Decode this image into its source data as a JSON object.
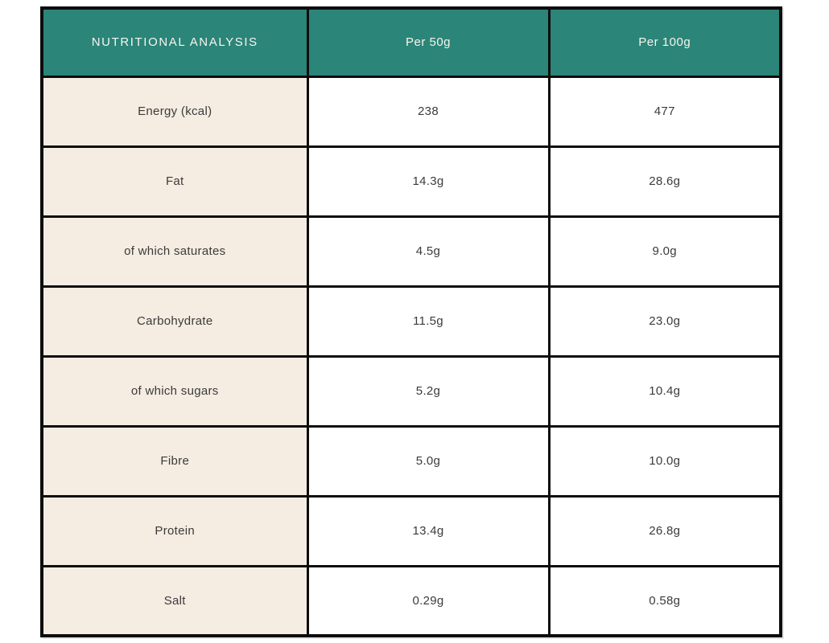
{
  "colors": {
    "header_bg": "#2B8579",
    "header_text": "#F8F5EE",
    "row_label_bg": "#F5ECE2",
    "cell_bg": "#FFFFFF",
    "border": "#0D0D0D",
    "body_text": "#3B3B3B"
  },
  "table": {
    "headers": [
      {
        "label": "NUTRITIONAL ANALYSIS"
      },
      {
        "label": "Per 50g"
      },
      {
        "label": "Per 100g"
      }
    ],
    "rows": [
      {
        "label": "Energy (kcal)",
        "per50": "238",
        "per100": "477"
      },
      {
        "label": "Fat",
        "per50": "14.3g",
        "per100": "28.6g"
      },
      {
        "label": "of which saturates",
        "per50": "4.5g",
        "per100": "9.0g"
      },
      {
        "label": "Carbohydrate",
        "per50": "11.5g",
        "per100": "23.0g"
      },
      {
        "label": "of which sugars",
        "per50": "5.2g",
        "per100": "10.4g"
      },
      {
        "label": "Fibre",
        "per50": "5.0g",
        "per100": "10.0g"
      },
      {
        "label": "Protein",
        "per50": "13.4g",
        "per100": "26.8g"
      },
      {
        "label": "Salt",
        "per50": "0.29g",
        "per100": "0.58g"
      }
    ]
  }
}
